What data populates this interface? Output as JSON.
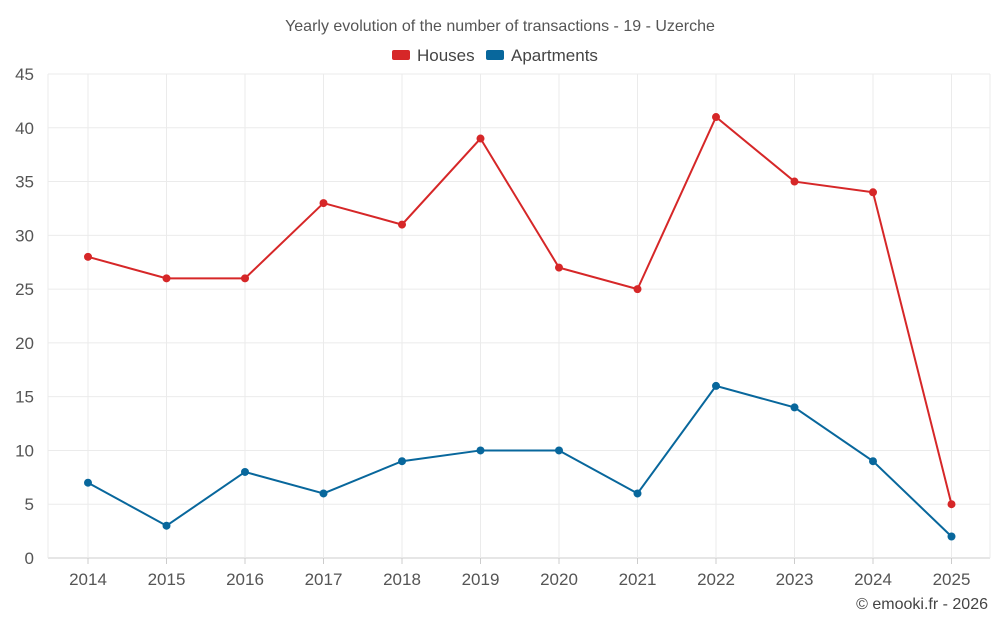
{
  "chart_data": {
    "type": "line",
    "title": "Yearly evolution of the number of transactions - 19 - Uzerche",
    "xlabel": "",
    "ylabel": "",
    "categories": [
      "2014",
      "2015",
      "2016",
      "2017",
      "2018",
      "2019",
      "2020",
      "2021",
      "2022",
      "2023",
      "2024",
      "2025"
    ],
    "ylim": [
      0,
      45
    ],
    "yticks": [
      0,
      5,
      10,
      15,
      20,
      25,
      30,
      35,
      40,
      45
    ],
    "grid": true,
    "legend_position": "top-center",
    "series": [
      {
        "name": "Houses",
        "color": "#d62728",
        "values": [
          28,
          26,
          26,
          33,
          31,
          39,
          27,
          25,
          41,
          35,
          34,
          5
        ]
      },
      {
        "name": "Apartments",
        "color": "#08679c",
        "values": [
          7,
          3,
          8,
          6,
          9,
          10,
          10,
          6,
          16,
          14,
          9,
          2
        ]
      }
    ],
    "credit": "© emooki.fr - 2026"
  }
}
